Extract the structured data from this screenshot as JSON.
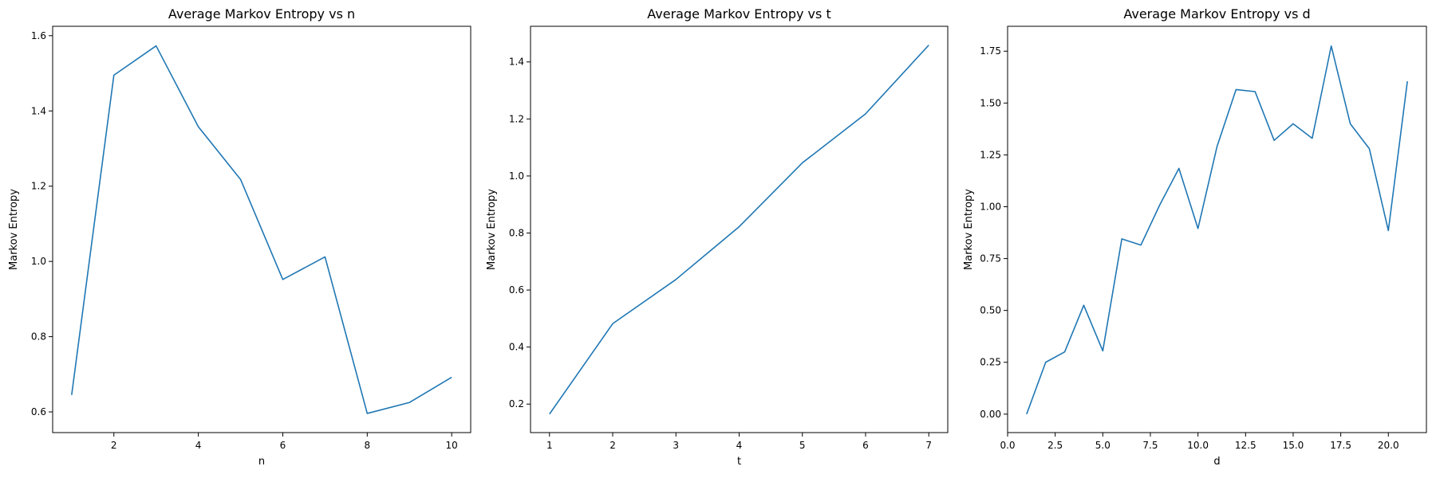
{
  "chart_data": [
    {
      "type": "line",
      "title": "Average Markov Entropy vs n",
      "xlabel": "n",
      "ylabel": "Markov Entropy",
      "xlim": [
        0.55,
        10.45
      ],
      "ylim": [
        0.545,
        1.625
      ],
      "xticks": [
        2,
        4,
        6,
        8,
        10
      ],
      "xtick_labels": [
        "2",
        "4",
        "6",
        "8",
        "10"
      ],
      "yticks": [
        0.6,
        0.8,
        1.0,
        1.2,
        1.4,
        1.6
      ],
      "ytick_labels": [
        "0.6",
        "0.8",
        "1.0",
        "1.2",
        "1.4",
        "1.6"
      ],
      "grid": false,
      "series": [
        {
          "color": "#1f77b4",
          "x": [
            1,
            2,
            3,
            4,
            5,
            6,
            7,
            8,
            9,
            10
          ],
          "y": [
            0.645,
            1.495,
            1.573,
            1.358,
            1.218,
            0.952,
            1.012,
            0.596,
            0.625,
            0.692
          ]
        }
      ]
    },
    {
      "type": "line",
      "title": "Average Markov Entropy vs t",
      "xlabel": "t",
      "ylabel": "Markov Entropy",
      "xlim": [
        0.7,
        7.3
      ],
      "ylim": [
        0.1,
        1.525
      ],
      "xticks": [
        1,
        2,
        3,
        4,
        5,
        6,
        7
      ],
      "xtick_labels": [
        "1",
        "2",
        "3",
        "4",
        "5",
        "6",
        "7"
      ],
      "yticks": [
        0.2,
        0.4,
        0.6,
        0.8,
        1.0,
        1.2,
        1.4
      ],
      "ytick_labels": [
        "0.2",
        "0.4",
        "0.6",
        "0.8",
        "1.0",
        "1.2",
        "1.4"
      ],
      "grid": false,
      "series": [
        {
          "color": "#1f77b4",
          "x": [
            1,
            2,
            3,
            4,
            5,
            6,
            7
          ],
          "y": [
            0.165,
            0.482,
            0.637,
            0.822,
            1.046,
            1.218,
            1.459
          ]
        }
      ]
    },
    {
      "type": "line",
      "title": "Average Markov Entropy vs d",
      "xlabel": "d",
      "ylabel": "Markov Entropy",
      "xlim": [
        0.0,
        22.0
      ],
      "ylim": [
        -0.089,
        1.87
      ],
      "xticks": [
        0.0,
        2.5,
        5.0,
        7.5,
        10.0,
        12.5,
        15.0,
        17.5,
        20.0
      ],
      "xtick_labels": [
        "0.0",
        "2.5",
        "5.0",
        "7.5",
        "10.0",
        "12.5",
        "15.0",
        "17.5",
        "20.0"
      ],
      "yticks": [
        0.0,
        0.25,
        0.5,
        0.75,
        1.0,
        1.25,
        1.5,
        1.75
      ],
      "ytick_labels": [
        "0.00",
        "0.25",
        "0.50",
        "0.75",
        "1.00",
        "1.25",
        "1.50",
        "1.75"
      ],
      "grid": false,
      "series": [
        {
          "color": "#1f77b4",
          "x": [
            1,
            2,
            3,
            4,
            5,
            6,
            7,
            8,
            9,
            10,
            11,
            12,
            13,
            14,
            15,
            16,
            17,
            18,
            19,
            20,
            21
          ],
          "y": [
            0.0,
            0.25,
            0.3,
            0.525,
            0.305,
            0.845,
            0.815,
            1.01,
            1.185,
            0.895,
            1.29,
            1.565,
            1.555,
            1.32,
            1.4,
            1.33,
            1.775,
            1.4,
            1.28,
            0.885,
            1.605
          ]
        }
      ]
    }
  ]
}
